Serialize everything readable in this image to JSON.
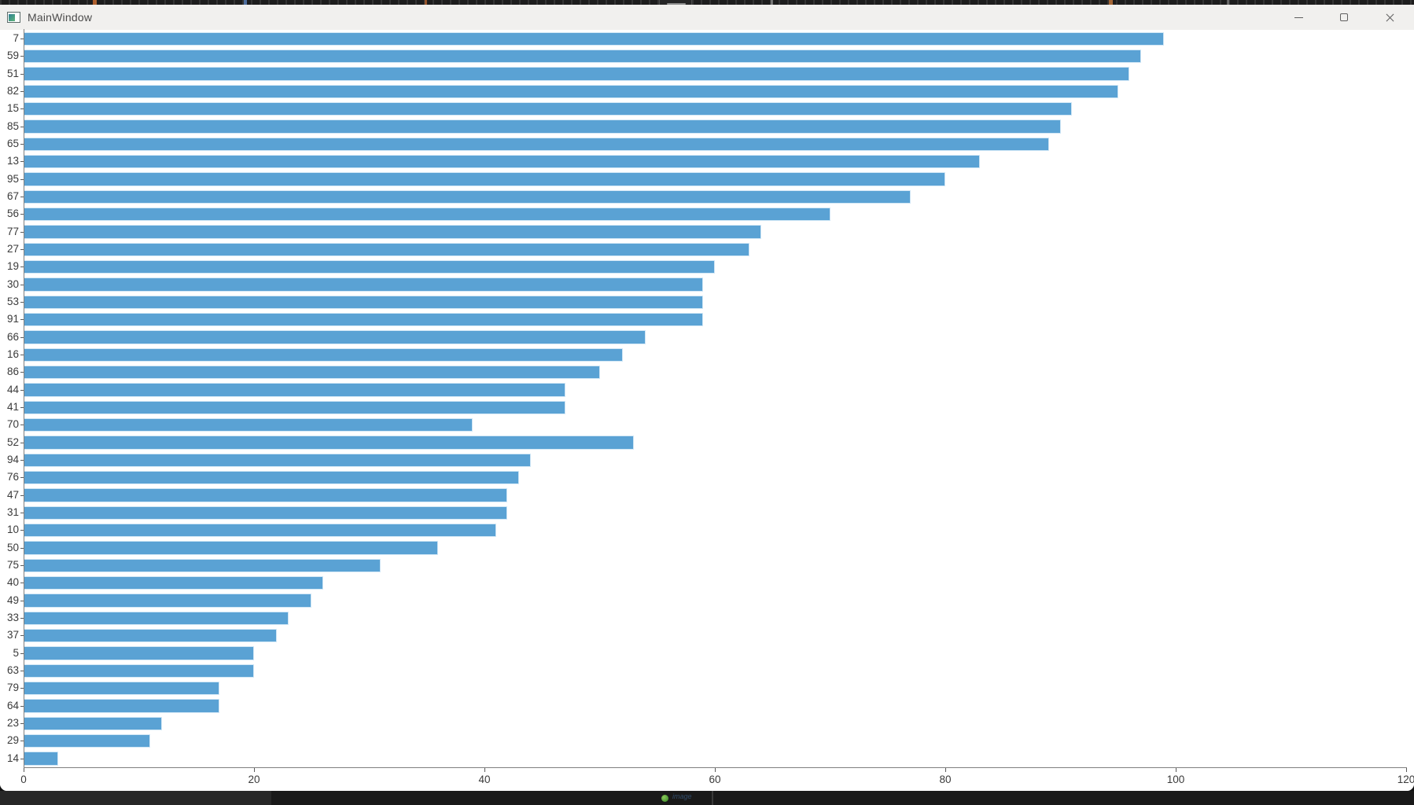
{
  "window": {
    "title": "MainWindow",
    "controls": [
      "minimize",
      "maximize",
      "close"
    ]
  },
  "chart_data": {
    "type": "bar",
    "orientation": "horizontal",
    "title": "",
    "xlabel": "",
    "ylabel": "",
    "categories": [
      "7",
      "59",
      "51",
      "82",
      "15",
      "85",
      "65",
      "13",
      "95",
      "67",
      "56",
      "77",
      "27",
      "19",
      "30",
      "53",
      "91",
      "66",
      "16",
      "86",
      "44",
      "41",
      "70",
      "52",
      "94",
      "76",
      "47",
      "31",
      "10",
      "50",
      "75",
      "40",
      "49",
      "33",
      "37",
      "5",
      "63",
      "79",
      "64",
      "23",
      "29",
      "14"
    ],
    "values": [
      99,
      97,
      96,
      95,
      91,
      90,
      89,
      83,
      80,
      77,
      70,
      64,
      63,
      60,
      59,
      59,
      59,
      54,
      52,
      50,
      47,
      47,
      39,
      53,
      44,
      43,
      42,
      42,
      41,
      36,
      31,
      26,
      25,
      23,
      22,
      20,
      20,
      17,
      17,
      12,
      11,
      3
    ],
    "xlim": [
      0,
      120
    ],
    "x_ticks": [
      0,
      20,
      40,
      60,
      80,
      100,
      120
    ],
    "grid": false,
    "legend": false,
    "bar_color": "#5aa2d4"
  },
  "colors": {
    "bar": "#5aa2d4",
    "titlebar_bg": "#f1f0ee",
    "chart_bg": "#ffffff",
    "axis": "#7f7f7f",
    "tick_label": "#3a3a3a",
    "taskbar_sliver": "#191919",
    "background_dot": "#4d9a33"
  },
  "background": {
    "fragment_text": "image"
  }
}
